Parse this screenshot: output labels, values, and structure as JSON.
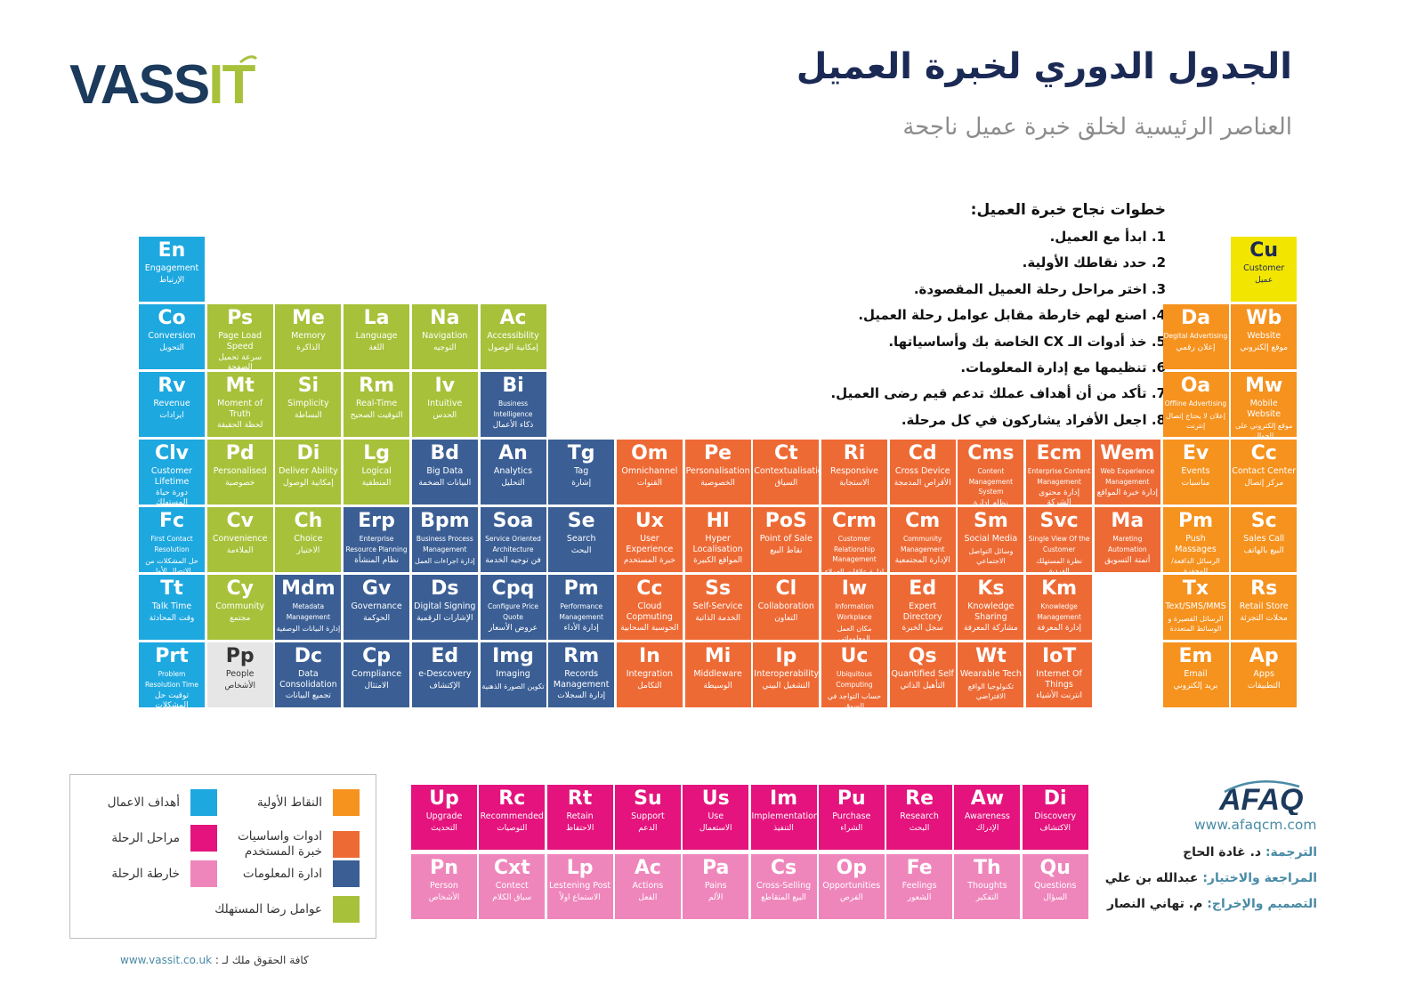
{
  "title": "الجدول الدوري لخبرة العميل",
  "subtitle": "العناصر الرئيسية لخلق خبرة عميل ناجحة",
  "logo_text": "VASSIT",
  "steps": {
    "heading": "خطوات نجاح خبرة العميل:",
    "items": [
      "1. ابدأ مع العميل.",
      "2. حدد نقاطك الأولية.",
      "3. اختر مراحل رحلة العميل المقصودة.",
      "4. اصنع لهم خارطة مقابل عوامل رحلة العميل.",
      "5. خذ أدوات الـ CX الخاصة بك وأساسياتها.",
      "6. تنظيمها مع إدارة المعلومات.",
      "7. تأكد من أن أهداف عملك تدعم قيم رضى العميل.",
      "8. اجعل الأفراد يشاركون في كل مرحلة."
    ]
  },
  "colors": {
    "goals": "#1ea8e0",
    "satisfaction": "#a8c13a",
    "info": "#3b5f95",
    "tools": "#ee6a35",
    "touchpoints": "#f6921e",
    "stages": "#e4137d",
    "mapping": "#ef86bb",
    "customer": "#f2e500",
    "people": "#e6e6e6"
  },
  "tiles": [
    {
      "sym": "En",
      "en": "Engagement",
      "ar": "الإرتباط",
      "cat": "goals",
      "col": 0,
      "row": 0
    },
    {
      "sym": "Co",
      "en": "Conversion",
      "ar": "التحويل",
      "cat": "goals",
      "col": 0,
      "row": 1
    },
    {
      "sym": "Rv",
      "en": "Revenue",
      "ar": "ايرادات",
      "cat": "goals",
      "col": 0,
      "row": 2
    },
    {
      "sym": "Clv",
      "en": "Customer Lifetime",
      "ar": "دورة حياة المستهلك",
      "cat": "goals",
      "col": 0,
      "row": 3
    },
    {
      "sym": "Fc",
      "en": "First Contact Resolution",
      "ar": "حل المشكلات من الاتصال الأول",
      "cat": "goals",
      "col": 0,
      "row": 4
    },
    {
      "sym": "Tt",
      "en": "Talk Time",
      "ar": "وقت المحادثة",
      "cat": "goals",
      "col": 0,
      "row": 5
    },
    {
      "sym": "Prt",
      "en": "Problem Resolution Time",
      "ar": "توقيت حل المشكلات",
      "cat": "goals",
      "col": 0,
      "row": 6
    },
    {
      "sym": "Ps",
      "en": "Page Load Speed",
      "ar": "سرعة تحميل الصفحة",
      "cat": "satisfaction",
      "col": 1,
      "row": 1
    },
    {
      "sym": "Mt",
      "en": "Moment of Truth",
      "ar": "لحظة الحقيقة",
      "cat": "satisfaction",
      "col": 1,
      "row": 2
    },
    {
      "sym": "Pd",
      "en": "Personalised",
      "ar": "خصوصية",
      "cat": "satisfaction",
      "col": 1,
      "row": 3
    },
    {
      "sym": "Cv",
      "en": "Convenience",
      "ar": "الملاءمة",
      "cat": "satisfaction",
      "col": 1,
      "row": 4
    },
    {
      "sym": "Cy",
      "en": "Community",
      "ar": "مجتمع",
      "cat": "satisfaction",
      "col": 1,
      "row": 5
    },
    {
      "sym": "Pp",
      "en": "People",
      "ar": "الأشخاص",
      "cat": "people",
      "col": 1,
      "row": 6
    },
    {
      "sym": "Me",
      "en": "Memory",
      "ar": "الذاكرة",
      "cat": "satisfaction",
      "col": 2,
      "row": 1
    },
    {
      "sym": "Si",
      "en": "Simplicity",
      "ar": "البساطة",
      "cat": "satisfaction",
      "col": 2,
      "row": 2
    },
    {
      "sym": "Di",
      "en": "Deliver Ability",
      "ar": "إمكانية الوصول",
      "cat": "satisfaction",
      "col": 2,
      "row": 3
    },
    {
      "sym": "Ch",
      "en": "Choice",
      "ar": "الاختيار",
      "cat": "satisfaction",
      "col": 2,
      "row": 4
    },
    {
      "sym": "Mdm",
      "en": "Metadata Management",
      "ar": "إدارة البيانات الوصفية",
      "cat": "info",
      "col": 2,
      "row": 5
    },
    {
      "sym": "Dc",
      "en": "Data Consolidation",
      "ar": "تجميع البيانات",
      "cat": "info",
      "col": 2,
      "row": 6
    },
    {
      "sym": "La",
      "en": "Language",
      "ar": "اللغة",
      "cat": "satisfaction",
      "col": 3,
      "row": 1
    },
    {
      "sym": "Rm",
      "en": "Real-Time",
      "ar": "التوقيت الصحيح",
      "cat": "satisfaction",
      "col": 3,
      "row": 2
    },
    {
      "sym": "Lg",
      "en": "Logical",
      "ar": "المنطقية",
      "cat": "satisfaction",
      "col": 3,
      "row": 3
    },
    {
      "sym": "Erp",
      "en": "Enterprise Resource Planning",
      "ar": "نظام المنشأة",
      "cat": "info",
      "col": 3,
      "row": 4
    },
    {
      "sym": "Gv",
      "en": "Governance",
      "ar": "الحوكمة",
      "cat": "info",
      "col": 3,
      "row": 5
    },
    {
      "sym": "Cp",
      "en": "Compliance",
      "ar": "الامتثال",
      "cat": "info",
      "col": 3,
      "row": 6
    },
    {
      "sym": "Na",
      "en": "Navigation",
      "ar": "التوجيه",
      "cat": "satisfaction",
      "col": 4,
      "row": 1
    },
    {
      "sym": "Iv",
      "en": "Intuitive",
      "ar": "الحدس",
      "cat": "satisfaction",
      "col": 4,
      "row": 2
    },
    {
      "sym": "Bd",
      "en": "Big Data",
      "ar": "البيانات الضخمة",
      "cat": "info",
      "col": 4,
      "row": 3
    },
    {
      "sym": "Bpm",
      "en": "Business Process Management",
      "ar": "إدارة اجراءات العمل",
      "cat": "info",
      "col": 4,
      "row": 4
    },
    {
      "sym": "Ds",
      "en": "Digital Signing",
      "ar": "الإشارات الرقمية",
      "cat": "info",
      "col": 4,
      "row": 5
    },
    {
      "sym": "Ed",
      "en": "e-Descovery",
      "ar": "الإكتشاف",
      "cat": "info",
      "col": 4,
      "row": 6
    },
    {
      "sym": "Ac",
      "en": "Accessibility",
      "ar": "إمكانية الوصول",
      "cat": "satisfaction",
      "col": 5,
      "row": 1
    },
    {
      "sym": "Bi",
      "en": "Business Intelligence",
      "ar": "ذكاء الأعمال",
      "cat": "info",
      "col": 5,
      "row": 2
    },
    {
      "sym": "An",
      "en": "Analytics",
      "ar": "التحليل",
      "cat": "info",
      "col": 5,
      "row": 3
    },
    {
      "sym": "Soa",
      "en": "Service Oriented Architecture",
      "ar": "فن توجيه الخدمة",
      "cat": "info",
      "col": 5,
      "row": 4
    },
    {
      "sym": "Cpq",
      "en": "Configure Price Quote",
      "ar": "عروض الأسعار",
      "cat": "info",
      "col": 5,
      "row": 5
    },
    {
      "sym": "Img",
      "en": "Imaging",
      "ar": "تكوين الصورة الذهنية",
      "cat": "info",
      "col": 5,
      "row": 6
    },
    {
      "sym": "Tg",
      "en": "Tag",
      "ar": "إشارة",
      "cat": "info",
      "col": 6,
      "row": 3
    },
    {
      "sym": "Se",
      "en": "Search",
      "ar": "البحث",
      "cat": "info",
      "col": 6,
      "row": 4
    },
    {
      "sym": "Pm",
      "en": "Performance Management",
      "ar": "إدارة الأداء",
      "cat": "info",
      "col": 6,
      "row": 5
    },
    {
      "sym": "Rm",
      "en": "Records Management",
      "ar": "إدارة السجلات",
      "cat": "info",
      "col": 6,
      "row": 6
    },
    {
      "sym": "Om",
      "en": "Omnichannel",
      "ar": "القنوات",
      "cat": "tools",
      "col": 7,
      "row": 3
    },
    {
      "sym": "Ux",
      "en": "User Experience",
      "ar": "خبرة المستخدم",
      "cat": "tools",
      "col": 7,
      "row": 4
    },
    {
      "sym": "Cc",
      "en": "Cloud Copmuting",
      "ar": "الحوسبة السحابية",
      "cat": "tools",
      "col": 7,
      "row": 5
    },
    {
      "sym": "In",
      "en": "Integration",
      "ar": "التكامل",
      "cat": "tools",
      "col": 7,
      "row": 6
    },
    {
      "sym": "Pe",
      "en": "Personalisation",
      "ar": "الخصوصية",
      "cat": "tools",
      "col": 8,
      "row": 3
    },
    {
      "sym": "Hl",
      "en": "Hyper Localisation",
      "ar": "المواقع الكبيرة",
      "cat": "tools",
      "col": 8,
      "row": 4
    },
    {
      "sym": "Ss",
      "en": "Self-Service",
      "ar": "الخدمة الذاتية",
      "cat": "tools",
      "col": 8,
      "row": 5
    },
    {
      "sym": "Mi",
      "en": "Middleware",
      "ar": "الوسيطة",
      "cat": "tools",
      "col": 8,
      "row": 6
    },
    {
      "sym": "Ct",
      "en": "Contextualisation",
      "ar": "السياق",
      "cat": "tools",
      "col": 9,
      "row": 3
    },
    {
      "sym": "PoS",
      "en": "Point of Sale",
      "ar": "نقاط البيع",
      "cat": "tools",
      "col": 9,
      "row": 4
    },
    {
      "sym": "Cl",
      "en": "Collaboration",
      "ar": "التعاون",
      "cat": "tools",
      "col": 9,
      "row": 5
    },
    {
      "sym": "Ip",
      "en": "Interoperability",
      "ar": "التشغيل البيني",
      "cat": "tools",
      "col": 9,
      "row": 6
    },
    {
      "sym": "Ri",
      "en": "Responsive",
      "ar": "الاستجابة",
      "cat": "tools",
      "col": 10,
      "row": 3
    },
    {
      "sym": "Crm",
      "en": "Customer Relationship Management",
      "ar": "إدارة علاقات العملاء",
      "cat": "tools",
      "col": 10,
      "row": 4
    },
    {
      "sym": "Iw",
      "en": "Information Workplace",
      "ar": "مكان العمل المعلوماتي",
      "cat": "tools",
      "col": 10,
      "row": 5
    },
    {
      "sym": "Uc",
      "en": "Ubiquitous Computing",
      "ar": "حساب التواجد في السوق",
      "cat": "tools",
      "col": 10,
      "row": 6
    },
    {
      "sym": "Cd",
      "en": "Cross Device",
      "ar": "الأقراص المدمجة",
      "cat": "tools",
      "col": 11,
      "row": 3
    },
    {
      "sym": "Cm",
      "en": "Community Management",
      "ar": "الإدارة المجتمعية",
      "cat": "tools",
      "col": 11,
      "row": 4
    },
    {
      "sym": "Ed",
      "en": "Expert Directory",
      "ar": "سجل الخبرة",
      "cat": "tools",
      "col": 11,
      "row": 5
    },
    {
      "sym": "Qs",
      "en": "Quantified Self",
      "ar": "التأهيل الذاتي",
      "cat": "tools",
      "col": 11,
      "row": 6
    },
    {
      "sym": "Cms",
      "en": "Content Management System",
      "ar": "نظام إدارة المحتوى",
      "cat": "tools",
      "col": 12,
      "row": 3
    },
    {
      "sym": "Sm",
      "en": "Social Media",
      "ar": "وسائل التواصل الاجتماعي",
      "cat": "tools",
      "col": 12,
      "row": 4
    },
    {
      "sym": "Ks",
      "en": "Knowledge Sharing",
      "ar": "مشاركة المعرفة",
      "cat": "tools",
      "col": 12,
      "row": 5
    },
    {
      "sym": "Wt",
      "en": "Wearable Tech",
      "ar": "تكنولوجيا الواقع الافتراضي",
      "cat": "tools",
      "col": 12,
      "row": 6
    },
    {
      "sym": "Ecm",
      "en": "Enterprise Content Management",
      "ar": "إدارة محتوى الشركة",
      "cat": "tools",
      "col": 13,
      "row": 3
    },
    {
      "sym": "Svc",
      "en": "Single View Of the Customer",
      "ar": "نظرة المستهلك الفردية",
      "cat": "tools",
      "col": 13,
      "row": 4
    },
    {
      "sym": "Km",
      "en": "Knowledge Management",
      "ar": "إدارة المعرفة",
      "cat": "tools",
      "col": 13,
      "row": 5
    },
    {
      "sym": "IoT",
      "en": "Internet Of Things",
      "ar": "انترنت الأشياء",
      "cat": "tools",
      "col": 13,
      "row": 6
    },
    {
      "sym": "Wem",
      "en": "Web Experience Management",
      "ar": "إدارة خبرة المواقع",
      "cat": "tools",
      "col": 14,
      "row": 3
    },
    {
      "sym": "Ma",
      "en": "Mareting Automation",
      "ar": "أتمتة التسويق",
      "cat": "tools",
      "col": 14,
      "row": 4
    },
    {
      "sym": "Da",
      "en": "Degital Advertising",
      "ar": "إعلان رقمي",
      "cat": "touchpoints",
      "col": 15,
      "row": 1
    },
    {
      "sym": "Oa",
      "en": "Offline Advertising",
      "ar": "إعلان لا يحتاج إتصال إنترنت",
      "cat": "touchpoints",
      "col": 15,
      "row": 2
    },
    {
      "sym": "Ev",
      "en": "Events",
      "ar": "مناسبات",
      "cat": "touchpoints",
      "col": 15,
      "row": 3
    },
    {
      "sym": "Pm",
      "en": "Push Massages",
      "ar": "الرسائل الدافعة/ المحفزة",
      "cat": "touchpoints",
      "col": 15,
      "row": 4
    },
    {
      "sym": "Tx",
      "en": "Text/SMS/MMS",
      "ar": "الرسائل القصيرة و الوسائط المتعددة",
      "cat": "touchpoints",
      "col": 15,
      "row": 5
    },
    {
      "sym": "Em",
      "en": "Email",
      "ar": "بريد إلكتروني",
      "cat": "touchpoints",
      "col": 15,
      "row": 6
    },
    {
      "sym": "Cu",
      "en": "Customer",
      "ar": "عميل",
      "cat": "customer",
      "col": 16,
      "row": 0
    },
    {
      "sym": "Wb",
      "en": "Website",
      "ar": "موقع إلكتروني",
      "cat": "touchpoints",
      "col": 16,
      "row": 1
    },
    {
      "sym": "Mw",
      "en": "Mobile Website",
      "ar": "موقع إلكتروني على الجوال",
      "cat": "touchpoints",
      "col": 16,
      "row": 2
    },
    {
      "sym": "Cc",
      "en": "Contact Center",
      "ar": "مركز إتصال",
      "cat": "touchpoints",
      "col": 16,
      "row": 3
    },
    {
      "sym": "Sc",
      "en": "Sales Call",
      "ar": "البيع بالهاتف",
      "cat": "touchpoints",
      "col": 16,
      "row": 4
    },
    {
      "sym": "Rs",
      "en": "Retail Store",
      "ar": "محلات التجزئة",
      "cat": "touchpoints",
      "col": 16,
      "row": 5
    },
    {
      "sym": "Ap",
      "en": "Apps",
      "ar": "التطبيقات",
      "cat": "touchpoints",
      "col": 16,
      "row": 6
    }
  ],
  "bottom_tiles": [
    {
      "sym": "Up",
      "en": "Upgrade",
      "ar": "التحديث",
      "cat": "stages",
      "col": 0,
      "row": 0
    },
    {
      "sym": "Rc",
      "en": "Recommended",
      "ar": "التوصيات",
      "cat": "stages",
      "col": 1,
      "row": 0
    },
    {
      "sym": "Rt",
      "en": "Retain",
      "ar": "الاحتفاظ",
      "cat": "stages",
      "col": 2,
      "row": 0
    },
    {
      "sym": "Su",
      "en": "Support",
      "ar": "الدعم",
      "cat": "stages",
      "col": 3,
      "row": 0
    },
    {
      "sym": "Us",
      "en": "Use",
      "ar": "الاستعمال",
      "cat": "stages",
      "col": 4,
      "row": 0
    },
    {
      "sym": "Im",
      "en": "Implementation",
      "ar": "التنفيذ",
      "cat": "stages",
      "col": 5,
      "row": 0
    },
    {
      "sym": "Pu",
      "en": "Purchase",
      "ar": "الشراء",
      "cat": "stages",
      "col": 6,
      "row": 0
    },
    {
      "sym": "Re",
      "en": "Research",
      "ar": "البحث",
      "cat": "stages",
      "col": 7,
      "row": 0
    },
    {
      "sym": "Aw",
      "en": "Awareness",
      "ar": "الإدراك",
      "cat": "stages",
      "col": 8,
      "row": 0
    },
    {
      "sym": "Di",
      "en": "Discovery",
      "ar": "الاكتشاف",
      "cat": "stages",
      "col": 9,
      "row": 0
    },
    {
      "sym": "Pn",
      "en": "Person",
      "ar": "الأشخاص",
      "cat": "mapping",
      "col": 0,
      "row": 1
    },
    {
      "sym": "Cxt",
      "en": "Contect",
      "ar": "سياق الكلام",
      "cat": "mapping",
      "col": 1,
      "row": 1
    },
    {
      "sym": "Lp",
      "en": "Lestening Post",
      "ar": "الاستماع اولاً",
      "cat": "mapping",
      "col": 2,
      "row": 1
    },
    {
      "sym": "Ac",
      "en": "Actions",
      "ar": "الفعل",
      "cat": "mapping",
      "col": 3,
      "row": 1
    },
    {
      "sym": "Pa",
      "en": "Pains",
      "ar": "الألم",
      "cat": "mapping",
      "col": 4,
      "row": 1
    },
    {
      "sym": "Cs",
      "en": "Cross-Selling",
      "ar": "البيع المتقاطع",
      "cat": "mapping",
      "col": 5,
      "row": 1
    },
    {
      "sym": "Op",
      "en": "Opportunities",
      "ar": "الفرص",
      "cat": "mapping",
      "col": 6,
      "row": 1
    },
    {
      "sym": "Fe",
      "en": "Feelings",
      "ar": "الشعور",
      "cat": "mapping",
      "col": 7,
      "row": 1
    },
    {
      "sym": "Th",
      "en": "Thoughts",
      "ar": "التفكير",
      "cat": "mapping",
      "col": 8,
      "row": 1
    },
    {
      "sym": "Qu",
      "en": "Questions",
      "ar": "السؤال",
      "cat": "mapping",
      "col": 9,
      "row": 1
    }
  ],
  "legend": [
    {
      "label": "النقاط الأولية",
      "cat": "touchpoints"
    },
    {
      "label": "أهداف الاعمال",
      "cat": "goals"
    },
    {
      "label": "ادوات واساسيات خبرة المستخدم",
      "cat": "tools"
    },
    {
      "label": "مراحل الرحلة",
      "cat": "stages"
    },
    {
      "label": "ادارة المعلومات",
      "cat": "info"
    },
    {
      "label": "خارطة الرحلة",
      "cat": "mapping"
    },
    {
      "label": "عوامل رضا المستهلك",
      "cat": "satisfaction"
    }
  ],
  "afaq": {
    "logo_text": "AFAQ",
    "url": "www.afaqcm.com",
    "credits": [
      {
        "key": "الترجمة:",
        "value": "د. غادة الحاج"
      },
      {
        "key": "المراجعة والاختيار:",
        "value": "عبدالله بن علي"
      },
      {
        "key": "التصميم والإخراج:",
        "value": "م. تهاني النصار"
      }
    ]
  },
  "footer": {
    "text": "كافة الحقوق ملك لـ :",
    "url": "www.vassit.co.uk"
  }
}
